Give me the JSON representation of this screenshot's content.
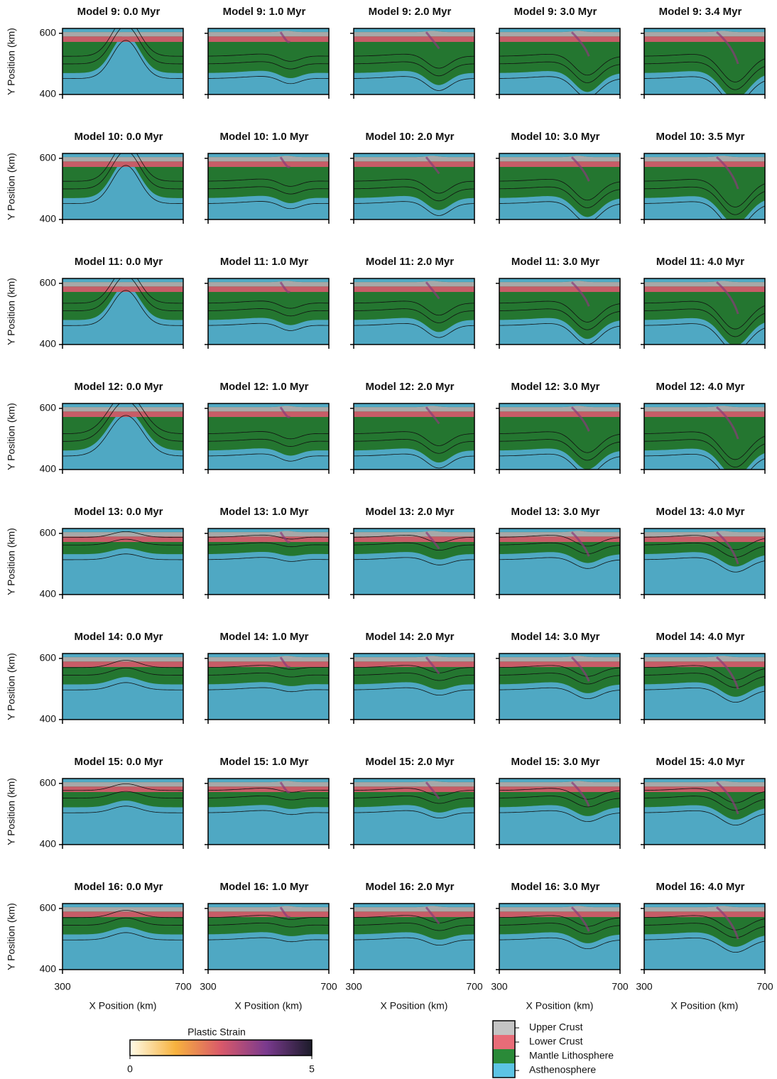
{
  "chart_data": {
    "type": "field-grid",
    "panels": [
      "Model 9: 0.0 Myr",
      "Model 9: 1.0 Myr",
      "Model 9: 2.0 Myr",
      "Model 9: 3.0 Myr",
      "Model 9: 3.4 Myr",
      "Model 10: 0.0 Myr",
      "Model 10: 1.0 Myr",
      "Model 10: 2.0 Myr",
      "Model 10: 3.0 Myr",
      "Model 10: 3.5 Myr",
      "Model 11: 0.0 Myr",
      "Model 11: 1.0 Myr",
      "Model 11: 2.0 Myr",
      "Model 11: 3.0 Myr",
      "Model 11: 4.0 Myr",
      "Model 12: 0.0 Myr",
      "Model 12: 1.0 Myr",
      "Model 12: 2.0 Myr",
      "Model 12: 3.0 Myr",
      "Model 12: 4.0 Myr",
      "Model 13: 0.0 Myr",
      "Model 13: 1.0 Myr",
      "Model 13: 2.0 Myr",
      "Model 13: 3.0 Myr",
      "Model 13: 4.0 Myr",
      "Model 14: 0.0 Myr",
      "Model 14: 1.0 Myr",
      "Model 14: 2.0 Myr",
      "Model 14: 3.0 Myr",
      "Model 14: 4.0 Myr",
      "Model 15: 0.0 Myr",
      "Model 15: 1.0 Myr",
      "Model 15: 2.0 Myr",
      "Model 15: 3.0 Myr",
      "Model 15: 4.0 Myr",
      "Model 16: 0.0 Myr",
      "Model 16: 1.0 Myr",
      "Model 16: 2.0 Myr",
      "Model 16: 3.0 Myr",
      "Model 16: 4.0 Myr"
    ],
    "columns": 5,
    "xlabel": "X Position (km)",
    "ylabel": "Y Position (km)",
    "xlim": [
      300,
      700
    ],
    "xticks": [
      300,
      700
    ],
    "ylim": [
      400,
      616
    ],
    "yticks": [
      400,
      600
    ],
    "colorbar": {
      "label": "Plastic Strain",
      "lim": [
        0,
        5
      ],
      "ticks": [
        0,
        5
      ]
    },
    "legend": [
      {
        "name": "Upper Crust",
        "color": "#c4c4c4"
      },
      {
        "name": "Lower Crust",
        "color": "#e86c78"
      },
      {
        "name": "Mantle Lithosphere",
        "color": "#2a8a38"
      },
      {
        "name": "Asthenosphere",
        "color": "#5cc4e4"
      }
    ]
  }
}
